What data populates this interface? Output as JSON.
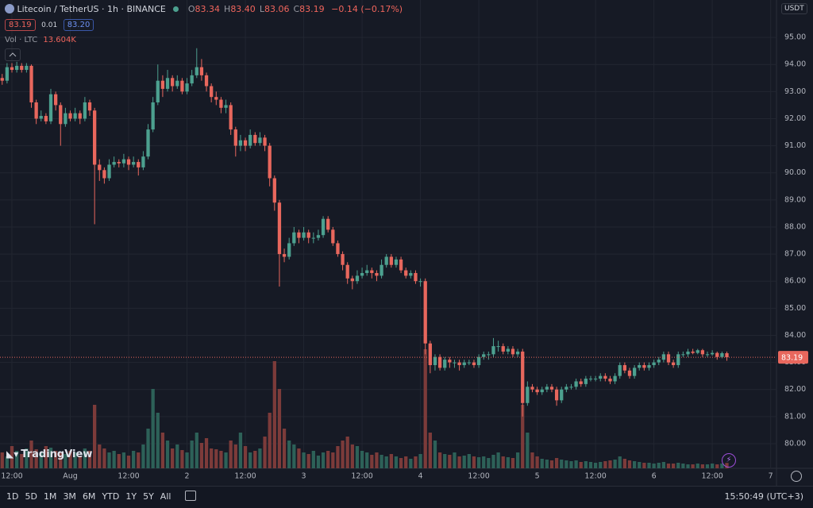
{
  "chart_data": {
    "type": "candlestick",
    "title": "Litecoin / TetherUS · 1h · BINANCE",
    "ohlc_legend": [
      {
        "label": "O",
        "value": "83.34"
      },
      {
        "label": "H",
        "value": "83.40"
      },
      {
        "label": "L",
        "value": "83.06"
      },
      {
        "label": "C",
        "value": "83.19"
      }
    ],
    "change": "−0.14 (−0.17%)",
    "bid": "83.19",
    "spread": "0.01",
    "ask": "83.20",
    "volume_title": "Vol · LTC",
    "volume_value": "13.604K",
    "currency": "USDT",
    "brand": "TradingView",
    "up_color": "#4ca08f",
    "down_color": "#e8675d",
    "up_volume_color": "#2d6158",
    "down_volume_color": "#7c3b3a",
    "xlim": [
      9.55,
      169.2
    ],
    "ylim": [
      79.09,
      96.38
    ],
    "grid": true,
    "xticks": [
      {
        "value": 12,
        "label": "12:00"
      },
      {
        "value": 24,
        "label": "Aug"
      },
      {
        "value": 36,
        "label": "12:00"
      },
      {
        "value": 48,
        "label": "2"
      },
      {
        "value": 60,
        "label": "12:00"
      },
      {
        "value": 72,
        "label": "3"
      },
      {
        "value": 84,
        "label": "12:00"
      },
      {
        "value": 96,
        "label": "4"
      },
      {
        "value": 108,
        "label": "12:00"
      },
      {
        "value": 120,
        "label": "5"
      },
      {
        "value": 132,
        "label": "12:00"
      },
      {
        "value": 144,
        "label": "6"
      },
      {
        "value": 156,
        "label": "12:00"
      },
      {
        "value": 168,
        "label": "7"
      }
    ],
    "yticks": [
      {
        "value": 80,
        "label": "80.00"
      },
      {
        "value": 81,
        "label": "81.00"
      },
      {
        "value": 82,
        "label": "82.00"
      },
      {
        "value": 83,
        "label": "83.00"
      },
      {
        "value": 84,
        "label": "84.00"
      },
      {
        "value": 85,
        "label": "85.00"
      },
      {
        "value": 86,
        "label": "86.00"
      },
      {
        "value": 87,
        "label": "87.00"
      },
      {
        "value": 88,
        "label": "88.00"
      },
      {
        "value": 89,
        "label": "89.00"
      },
      {
        "value": 90,
        "label": "90.00"
      },
      {
        "value": 91,
        "label": "91.00"
      },
      {
        "value": 92,
        "label": "92.00"
      },
      {
        "value": 93,
        "label": "93.00"
      },
      {
        "value": 94,
        "label": "94.00"
      },
      {
        "value": 95,
        "label": "95.00"
      }
    ],
    "x": [
      10,
      11,
      12,
      13,
      14,
      15,
      16,
      17,
      18,
      19,
      20,
      21,
      22,
      23,
      24,
      25,
      26,
      27,
      28,
      29,
      30,
      31,
      32,
      33,
      34,
      35,
      36,
      37,
      38,
      39,
      40,
      41,
      42,
      43,
      44,
      45,
      46,
      47,
      48,
      49,
      50,
      51,
      52,
      53,
      54,
      55,
      56,
      57,
      58,
      59,
      60,
      61,
      62,
      63,
      64,
      65,
      66,
      67,
      68,
      69,
      70,
      71,
      72,
      73,
      74,
      75,
      76,
      77,
      78,
      79,
      80,
      81,
      82,
      83,
      84,
      85,
      86,
      87,
      88,
      89,
      90,
      91,
      92,
      93,
      94,
      95,
      96,
      97,
      98,
      99,
      100,
      101,
      102,
      103,
      104,
      105,
      106,
      107,
      108,
      109,
      110,
      111,
      112,
      113,
      114,
      115,
      116,
      117,
      118,
      119,
      120,
      121,
      122,
      123,
      124,
      125,
      126,
      127,
      128,
      129,
      130,
      131,
      132,
      133,
      134,
      135,
      136,
      137,
      138,
      139,
      140,
      141,
      142,
      143,
      144,
      145,
      146,
      147,
      148,
      149,
      150,
      151,
      152,
      153,
      154,
      155,
      156,
      157,
      158,
      159
    ],
    "open": [
      93.5,
      93.4,
      93.9,
      93.8,
      93.95,
      93.8,
      93.95,
      92.6,
      92.0,
      92.1,
      91.9,
      92.9,
      92.5,
      91.8,
      92.2,
      92.0,
      92.2,
      92.0,
      92.6,
      92.3,
      90.3,
      90.1,
      89.8,
      90.3,
      90.4,
      90.35,
      90.5,
      90.3,
      90.4,
      90.2,
      90.6,
      91.6,
      92.6,
      93.4,
      93.1,
      93.5,
      93.2,
      93.4,
      93.0,
      93.3,
      93.6,
      93.9,
      93.6,
      93.2,
      92.8,
      92.7,
      92.4,
      92.5,
      91.6,
      91.0,
      91.2,
      91.0,
      91.4,
      91.1,
      91.3,
      91.0,
      89.8,
      88.9,
      87.0,
      86.9,
      87.4,
      87.8,
      87.6,
      87.8,
      87.6,
      87.6,
      87.7,
      88.3,
      87.9,
      87.4,
      87.0,
      86.6,
      86.1,
      86.0,
      86.2,
      86.3,
      86.4,
      86.3,
      86.2,
      86.6,
      86.9,
      86.6,
      86.8,
      86.4,
      86.2,
      86.3,
      86.0,
      86.0,
      83.7,
      82.9,
      83.2,
      82.8,
      83.1,
      83.0,
      83.0,
      82.9,
      83.0,
      83.0,
      82.9,
      83.2,
      83.3,
      83.3,
      83.6,
      83.6,
      83.4,
      83.5,
      83.3,
      83.4,
      81.5,
      82.1,
      82.0,
      81.9,
      82.0,
      82.1,
      82.0,
      81.6,
      82.0,
      82.1,
      82.1,
      82.3,
      82.2,
      82.4,
      82.4,
      82.4,
      82.5,
      82.4,
      82.3,
      82.5,
      82.9,
      82.7,
      82.5,
      82.8,
      82.9,
      82.8,
      82.9,
      83.0,
      83.1,
      83.3,
      83.0,
      82.9,
      83.3,
      83.3,
      83.4,
      83.35,
      83.45,
      83.3,
      83.3,
      83.35,
      83.2,
      83.34
    ],
    "high": [
      93.65,
      94.05,
      94.05,
      94.1,
      94.05,
      94.05,
      94.0,
      92.7,
      92.3,
      92.2,
      93.1,
      93.0,
      92.6,
      92.4,
      92.3,
      92.4,
      92.3,
      92.8,
      92.7,
      92.4,
      90.5,
      90.2,
      90.5,
      90.6,
      90.5,
      90.7,
      90.6,
      90.6,
      90.5,
      90.8,
      91.8,
      92.8,
      94.0,
      93.6,
      93.8,
      93.6,
      93.6,
      93.5,
      93.5,
      93.8,
      94.6,
      94.2,
      93.7,
      93.3,
      93.0,
      92.8,
      92.7,
      92.6,
      91.7,
      91.4,
      91.3,
      91.6,
      91.5,
      91.5,
      91.4,
      91.1,
      89.9,
      89.0,
      87.2,
      87.6,
      88.0,
      87.9,
      88.0,
      87.9,
      87.8,
      87.9,
      88.4,
      88.4,
      88.0,
      87.5,
      87.1,
      86.7,
      86.2,
      86.4,
      86.5,
      86.6,
      86.5,
      86.4,
      86.8,
      87.0,
      87.0,
      86.9,
      86.9,
      86.5,
      86.4,
      86.4,
      86.1,
      86.1,
      83.8,
      83.3,
      83.3,
      83.2,
      83.2,
      83.1,
      83.1,
      83.1,
      83.1,
      83.1,
      83.3,
      83.4,
      83.4,
      83.9,
      83.8,
      83.7,
      83.6,
      83.6,
      83.5,
      83.5,
      82.3,
      82.2,
      82.1,
      82.1,
      82.2,
      82.2,
      82.1,
      82.1,
      82.2,
      82.2,
      82.4,
      82.4,
      82.5,
      82.5,
      82.5,
      82.6,
      82.6,
      82.5,
      82.6,
      83.0,
      83.0,
      82.8,
      82.9,
      83.0,
      83.0,
      83.0,
      83.1,
      83.2,
      83.4,
      83.4,
      83.1,
      83.4,
      83.4,
      83.5,
      83.5,
      83.5,
      83.5,
      83.4,
      83.45,
      83.4,
      83.4,
      83.4
    ],
    "low": [
      93.25,
      93.3,
      93.7,
      93.7,
      93.7,
      93.7,
      92.4,
      91.8,
      91.9,
      91.8,
      91.8,
      92.3,
      91.0,
      91.7,
      91.9,
      91.9,
      91.8,
      91.9,
      92.1,
      88.1,
      89.7,
      89.6,
      89.7,
      90.2,
      90.2,
      90.2,
      90.1,
      90.2,
      89.9,
      90.1,
      90.5,
      91.5,
      92.5,
      92.8,
      93.0,
      93.0,
      93.1,
      92.9,
      92.9,
      93.2,
      93.5,
      93.4,
      93.0,
      92.6,
      92.5,
      92.2,
      92.2,
      91.4,
      90.6,
      90.8,
      90.8,
      90.9,
      91.0,
      91.0,
      90.8,
      89.5,
      88.6,
      85.8,
      86.7,
      86.8,
      87.3,
      87.4,
      87.5,
      87.4,
      87.4,
      87.5,
      87.6,
      87.8,
      87.3,
      86.9,
      86.4,
      85.9,
      85.7,
      85.9,
      86.1,
      86.2,
      86.1,
      86.0,
      86.1,
      86.5,
      86.5,
      86.5,
      86.3,
      86.1,
      86.1,
      85.9,
      85.8,
      83.3,
      82.6,
      82.7,
      82.7,
      82.7,
      82.8,
      82.8,
      82.7,
      82.8,
      82.9,
      82.8,
      82.8,
      83.1,
      83.1,
      83.2,
      83.4,
      83.3,
      83.3,
      83.2,
      83.2,
      81.0,
      81.4,
      81.9,
      81.8,
      81.8,
      81.9,
      81.9,
      81.4,
      81.5,
      81.9,
      82.0,
      82.0,
      82.1,
      82.1,
      82.3,
      82.3,
      82.3,
      82.3,
      82.2,
      82.2,
      82.4,
      82.6,
      82.4,
      82.4,
      82.7,
      82.7,
      82.7,
      82.8,
      82.9,
      83.0,
      82.9,
      82.8,
      82.8,
      83.2,
      83.2,
      83.3,
      83.3,
      83.2,
      83.2,
      83.25,
      83.1,
      83.15,
      83.06
    ],
    "close": [
      93.4,
      93.9,
      93.8,
      93.95,
      93.8,
      93.95,
      92.6,
      92.0,
      92.1,
      91.9,
      92.9,
      92.5,
      91.8,
      92.2,
      92.0,
      92.2,
      92.0,
      92.6,
      92.3,
      90.3,
      90.1,
      89.8,
      90.3,
      90.4,
      90.35,
      90.5,
      90.3,
      90.4,
      90.2,
      90.6,
      91.6,
      92.6,
      93.4,
      93.1,
      93.5,
      93.2,
      93.4,
      93.0,
      93.3,
      93.6,
      93.9,
      93.6,
      93.2,
      92.8,
      92.7,
      92.4,
      92.5,
      91.6,
      91.0,
      91.2,
      91.0,
      91.4,
      91.1,
      91.3,
      91.0,
      89.8,
      88.9,
      87.0,
      86.9,
      87.4,
      87.8,
      87.6,
      87.8,
      87.6,
      87.6,
      87.7,
      88.3,
      87.9,
      87.4,
      87.0,
      86.6,
      86.1,
      86.0,
      86.2,
      86.3,
      86.4,
      86.3,
      86.2,
      86.6,
      86.9,
      86.6,
      86.8,
      86.4,
      86.2,
      86.3,
      86.0,
      86.0,
      83.7,
      82.9,
      83.2,
      82.8,
      83.1,
      83.0,
      83.0,
      82.9,
      83.0,
      83.0,
      82.9,
      83.2,
      83.3,
      83.3,
      83.6,
      83.6,
      83.4,
      83.5,
      83.3,
      83.4,
      81.5,
      82.1,
      82.0,
      81.9,
      82.0,
      82.1,
      82.0,
      81.6,
      82.0,
      82.1,
      82.1,
      82.3,
      82.2,
      82.4,
      82.4,
      82.4,
      82.5,
      82.4,
      82.3,
      82.5,
      82.9,
      82.7,
      82.5,
      82.8,
      82.9,
      82.8,
      82.9,
      83.0,
      83.1,
      83.3,
      83.0,
      82.9,
      83.3,
      83.3,
      83.4,
      83.35,
      83.45,
      83.3,
      83.3,
      83.35,
      83.2,
      83.34,
      83.19
    ],
    "volume": [
      40000,
      30000,
      56000,
      44000,
      36000,
      50000,
      70000,
      48000,
      40000,
      56000,
      52000,
      44000,
      40000,
      36000,
      44000,
      40000,
      32000,
      50000,
      44000,
      160000,
      60000,
      50000,
      40000,
      44000,
      36000,
      40000,
      32000,
      44000,
      40000,
      60000,
      100000,
      200000,
      140000,
      90000,
      70000,
      50000,
      60000,
      46000,
      40000,
      70000,
      90000,
      64000,
      76000,
      50000,
      48000,
      44000,
      40000,
      70000,
      60000,
      90000,
      56000,
      40000,
      44000,
      50000,
      80000,
      140000,
      270000,
      200000,
      100000,
      70000,
      60000,
      50000,
      40000,
      36000,
      44000,
      32000,
      40000,
      44000,
      40000,
      56000,
      70000,
      80000,
      60000,
      56000,
      44000,
      40000,
      34000,
      40000,
      34000,
      30000,
      36000,
      30000,
      26000,
      30000,
      24000,
      30000,
      36000,
      300000,
      90000,
      70000,
      40000,
      36000,
      34000,
      40000,
      30000,
      32000,
      36000,
      30000,
      28000,
      30000,
      26000,
      34000,
      40000,
      30000,
      28000,
      26000,
      40000,
      160000,
      90000,
      40000,
      30000,
      24000,
      22000,
      20000,
      26000,
      22000,
      20000,
      18000,
      20000,
      16000,
      18000,
      16000,
      14000,
      16000,
      18000,
      20000,
      22000,
      30000,
      24000,
      20000,
      18000,
      16000,
      14000,
      14000,
      12000,
      14000,
      16000,
      12000,
      12000,
      14000,
      12000,
      10000,
      10000,
      12000,
      10000,
      10000,
      12000,
      10000,
      12000,
      13604
    ]
  },
  "toolbar": {
    "ranges": [
      "1D",
      "5D",
      "1M",
      "3M",
      "6M",
      "YTD",
      "1Y",
      "5Y",
      "All"
    ],
    "clock": "15:50:49 (UTC+3)"
  }
}
